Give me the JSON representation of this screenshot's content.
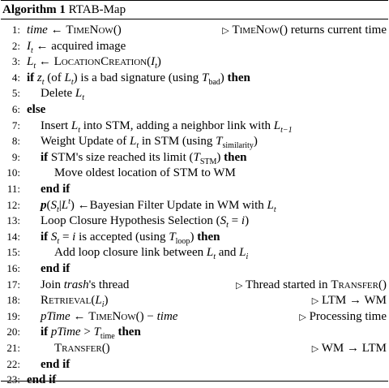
{
  "header": {
    "algorithm_label": "Algorithm 1",
    "title": "RTAB-Map"
  },
  "lines": [
    {
      "num": "1:",
      "indent": 0,
      "html": "<i>time</i> ← <span class=\"sc\">TimeNow</span>()",
      "comment": "<span class=\"tri\">▷</span> <span class=\"sc\">TimeNow</span>() returns current time"
    },
    {
      "num": "2:",
      "indent": 0,
      "html": "<i>I<sub>t</sub></i> ← acquired image",
      "comment": ""
    },
    {
      "num": "3:",
      "indent": 0,
      "html": "<i>L<sub>t</sub></i> ← <span class=\"sc\">LocationCreation</span>(<i>I<sub>t</sub></i>)",
      "comment": ""
    },
    {
      "num": "4:",
      "indent": 0,
      "html": "<span class=\"kw\">if</span> <i>z<sub>t</sub></i> (of <i>L<sub>t</sub></i>) is a bad signature (using <i>T</i><sub>bad</sub>) <span class=\"kw\">then</span>",
      "comment": ""
    },
    {
      "num": "5:",
      "indent": 1,
      "html": "Delete <i>L<sub>t</sub></i>",
      "comment": ""
    },
    {
      "num": "6:",
      "indent": 0,
      "html": "<span class=\"kw\">else</span>",
      "comment": ""
    },
    {
      "num": "7:",
      "indent": 1,
      "html": "Insert <i>L<sub>t</sub></i> into STM, adding a neighbor link with <i>L<sub>t−1</sub></i>",
      "comment": ""
    },
    {
      "num": "8:",
      "indent": 1,
      "html": "Weight Update of <i>L<sub>t</sub></i> in STM (using <i>T</i><sub>similarity</sub>)",
      "comment": ""
    },
    {
      "num": "9:",
      "indent": 1,
      "html": "<span class=\"kw\">if</span> STM's size reached its limit (<i>T</i><sub>STM</sub>) <span class=\"kw\">then</span>",
      "comment": ""
    },
    {
      "num": "10:",
      "indent": 2,
      "html": "Move oldest location of STM to WM",
      "comment": ""
    },
    {
      "num": "11:",
      "indent": 1,
      "html": "<span class=\"kw\">end if</span>",
      "comment": ""
    },
    {
      "num": "12:",
      "indent": 1,
      "html": "<b><i>p</i></b>(<i>S<sub>t</sub></i>|<i>L<sup>t</sup></i>) ←Bayesian Filter Update in WM with <i>L<sub>t</sub></i>",
      "comment": ""
    },
    {
      "num": "13:",
      "indent": 1,
      "html": "Loop Closure Hypothesis Selection (<i>S<sub>t</sub></i> = <i>i</i>)",
      "comment": ""
    },
    {
      "num": "14:",
      "indent": 1,
      "html": "<span class=\"kw\">if</span> <i>S<sub>t</sub></i> = <i>i</i> is accepted (using <i>T</i><sub>loop</sub>) <span class=\"kw\">then</span>",
      "comment": ""
    },
    {
      "num": "15:",
      "indent": 2,
      "html": "Add loop closure link between <i>L<sub>t</sub></i> and <i>L<sub>i</sub></i>",
      "comment": ""
    },
    {
      "num": "16:",
      "indent": 1,
      "html": "<span class=\"kw\">end if</span>",
      "comment": ""
    },
    {
      "num": "17:",
      "indent": 1,
      "html": "Join <i>trash</i>'s thread",
      "comment": "<span class=\"tri\">▷</span> Thread started in <span class=\"sc\">Transfer</span>()"
    },
    {
      "num": "18:",
      "indent": 1,
      "html": "<span class=\"sc\">Retrieval</span>(<i>L<sub>i</sub></i>)",
      "comment": "<span class=\"tri\">▷</span> LTM → WM"
    },
    {
      "num": "19:",
      "indent": 1,
      "html": "<i>pTime</i> ← <span class=\"sc\">TimeNow</span>() − <i>time</i>",
      "comment": "<span class=\"tri\">▷</span> Processing time"
    },
    {
      "num": "20:",
      "indent": 1,
      "html": "<span class=\"kw\">if</span> <i>pTime</i> &gt; <i>T</i><sub>time</sub> <span class=\"kw\">then</span>",
      "comment": ""
    },
    {
      "num": "21:",
      "indent": 2,
      "html": "<span class=\"sc\">Transfer</span>()",
      "comment": "<span class=\"tri\">▷</span> WM → LTM"
    },
    {
      "num": "22:",
      "indent": 1,
      "html": "<span class=\"kw\">end if</span>",
      "comment": ""
    },
    {
      "num": "23:",
      "indent": 0,
      "html": "<span class=\"kw\">end if</span>",
      "comment": ""
    }
  ]
}
